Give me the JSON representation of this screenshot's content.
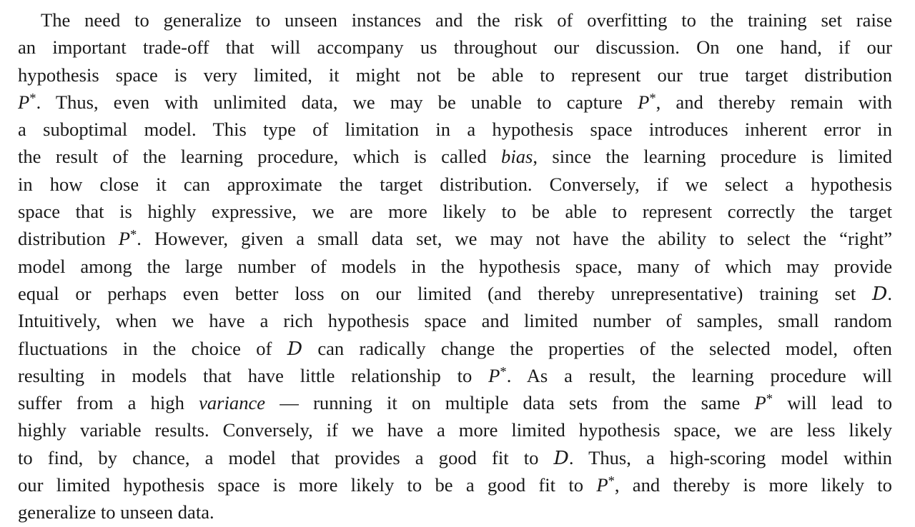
{
  "paragraph": {
    "lines": [
      [
        "The need to generalize to unseen instances and the risk of overfitting to the training set raise"
      ],
      [
        "an important trade-off that will accompany us throughout our discussion. On one hand, if our"
      ],
      [
        "hypothesis space is very limited, it might not be able to represent our true target distribution"
      ],
      [
        {
          "text": "P",
          "style": "italic"
        },
        {
          "text": "*",
          "style": "sup"
        },
        ". Thus, even with unlimited data, we may be unable to capture ",
        {
          "text": "P",
          "style": "italic"
        },
        {
          "text": "*",
          "style": "sup"
        },
        ", and thereby remain with"
      ],
      [
        "a suboptimal model. This type of limitation in a hypothesis space introduces inherent error in"
      ],
      [
        "the result of the learning procedure, which is called ",
        {
          "text": "bias",
          "style": "italic"
        },
        ", since the learning procedure is limited"
      ],
      [
        "in how close it can approximate the target distribution. Conversely, if we select a hypothesis"
      ],
      [
        "space that is highly expressive, we are more likely to be able to represent correctly the target"
      ],
      [
        "distribution ",
        {
          "text": "P",
          "style": "italic"
        },
        {
          "text": "*",
          "style": "sup"
        },
        ". However, given a small data set, we may not have the ability to select the “right”"
      ],
      [
        "model among the large number of models in the hypothesis space, many of which may provide"
      ],
      [
        "equal or perhaps even better loss on our limited (and thereby unrepresentative) training set ",
        {
          "text": "D",
          "style": "cal"
        },
        "."
      ],
      [
        "Intuitively, when we have a rich hypothesis space and limited number of samples, small random"
      ],
      [
        "fluctuations in the choice of ",
        {
          "text": "D",
          "style": "cal"
        },
        " can radically change the properties of the selected model, often"
      ],
      [
        "resulting in models that have little relationship to ",
        {
          "text": "P",
          "style": "italic"
        },
        {
          "text": "*",
          "style": "sup"
        },
        ". As a result, the learning procedure will"
      ],
      [
        "suffer from a high ",
        {
          "text": "variance",
          "style": "italic"
        },
        " — running it on multiple data sets from the same ",
        {
          "text": "P",
          "style": "italic"
        },
        {
          "text": "*",
          "style": "sup"
        },
        " will lead to"
      ],
      [
        "highly variable results. Conversely, if we have a more limited hypothesis space, we are less likely"
      ],
      [
        "to find, by chance, a model that provides a good fit to ",
        {
          "text": "D",
          "style": "cal"
        },
        ". Thus, a high-scoring model within"
      ],
      [
        "our limited hypothesis space is more likely to be a good fit to ",
        {
          "text": "P",
          "style": "italic"
        },
        {
          "text": "*",
          "style": "sup"
        },
        ", and thereby is more likely to"
      ],
      [
        "generalize to unseen data."
      ]
    ]
  }
}
